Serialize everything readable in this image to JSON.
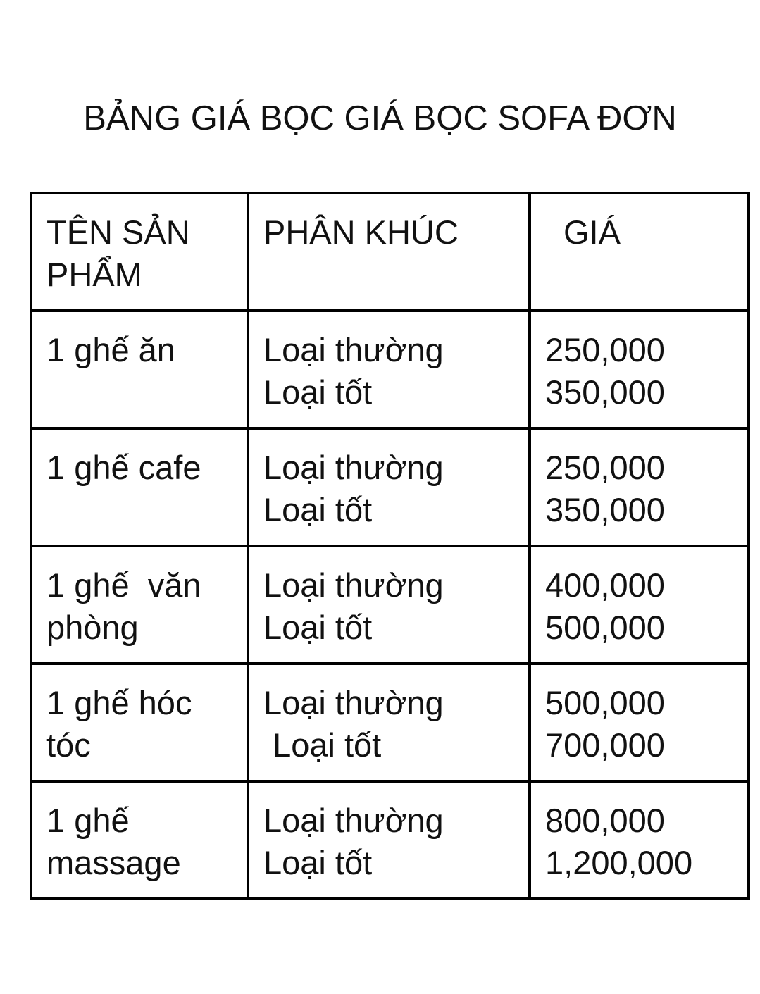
{
  "page": {
    "title": "BẢNG GIÁ BỌC GIÁ BỌC SOFA ĐƠN",
    "background_color": "#ffffff",
    "text_color": "#111111",
    "border_color": "#000000"
  },
  "table": {
    "headers": [
      "TÊN SẢN\nPHẨM",
      "PHÂN KHÚC",
      "GIÁ"
    ],
    "rows": [
      {
        "product": "1 ghế ăn",
        "segment": "Loại thường\nLoại tốt",
        "price": "250,000\n350,000"
      },
      {
        "product": "1 ghế cafe",
        "segment": "Loại thường\nLoại tốt",
        "price": "250,000\n350,000"
      },
      {
        "product": "1 ghế  văn\nphòng",
        "segment": "Loại thường\nLoại tốt",
        "price": "400,000\n500,000"
      },
      {
        "product": "1 ghế hóc\ntóc",
        "segment": "Loại thường\n Loại tốt",
        "price": "500,000\n700,000"
      },
      {
        "product": "1 ghế\nmassage",
        "segment": "Loại thường\nLoại tốt",
        "price": "800,000\n1,200,000"
      }
    ]
  }
}
